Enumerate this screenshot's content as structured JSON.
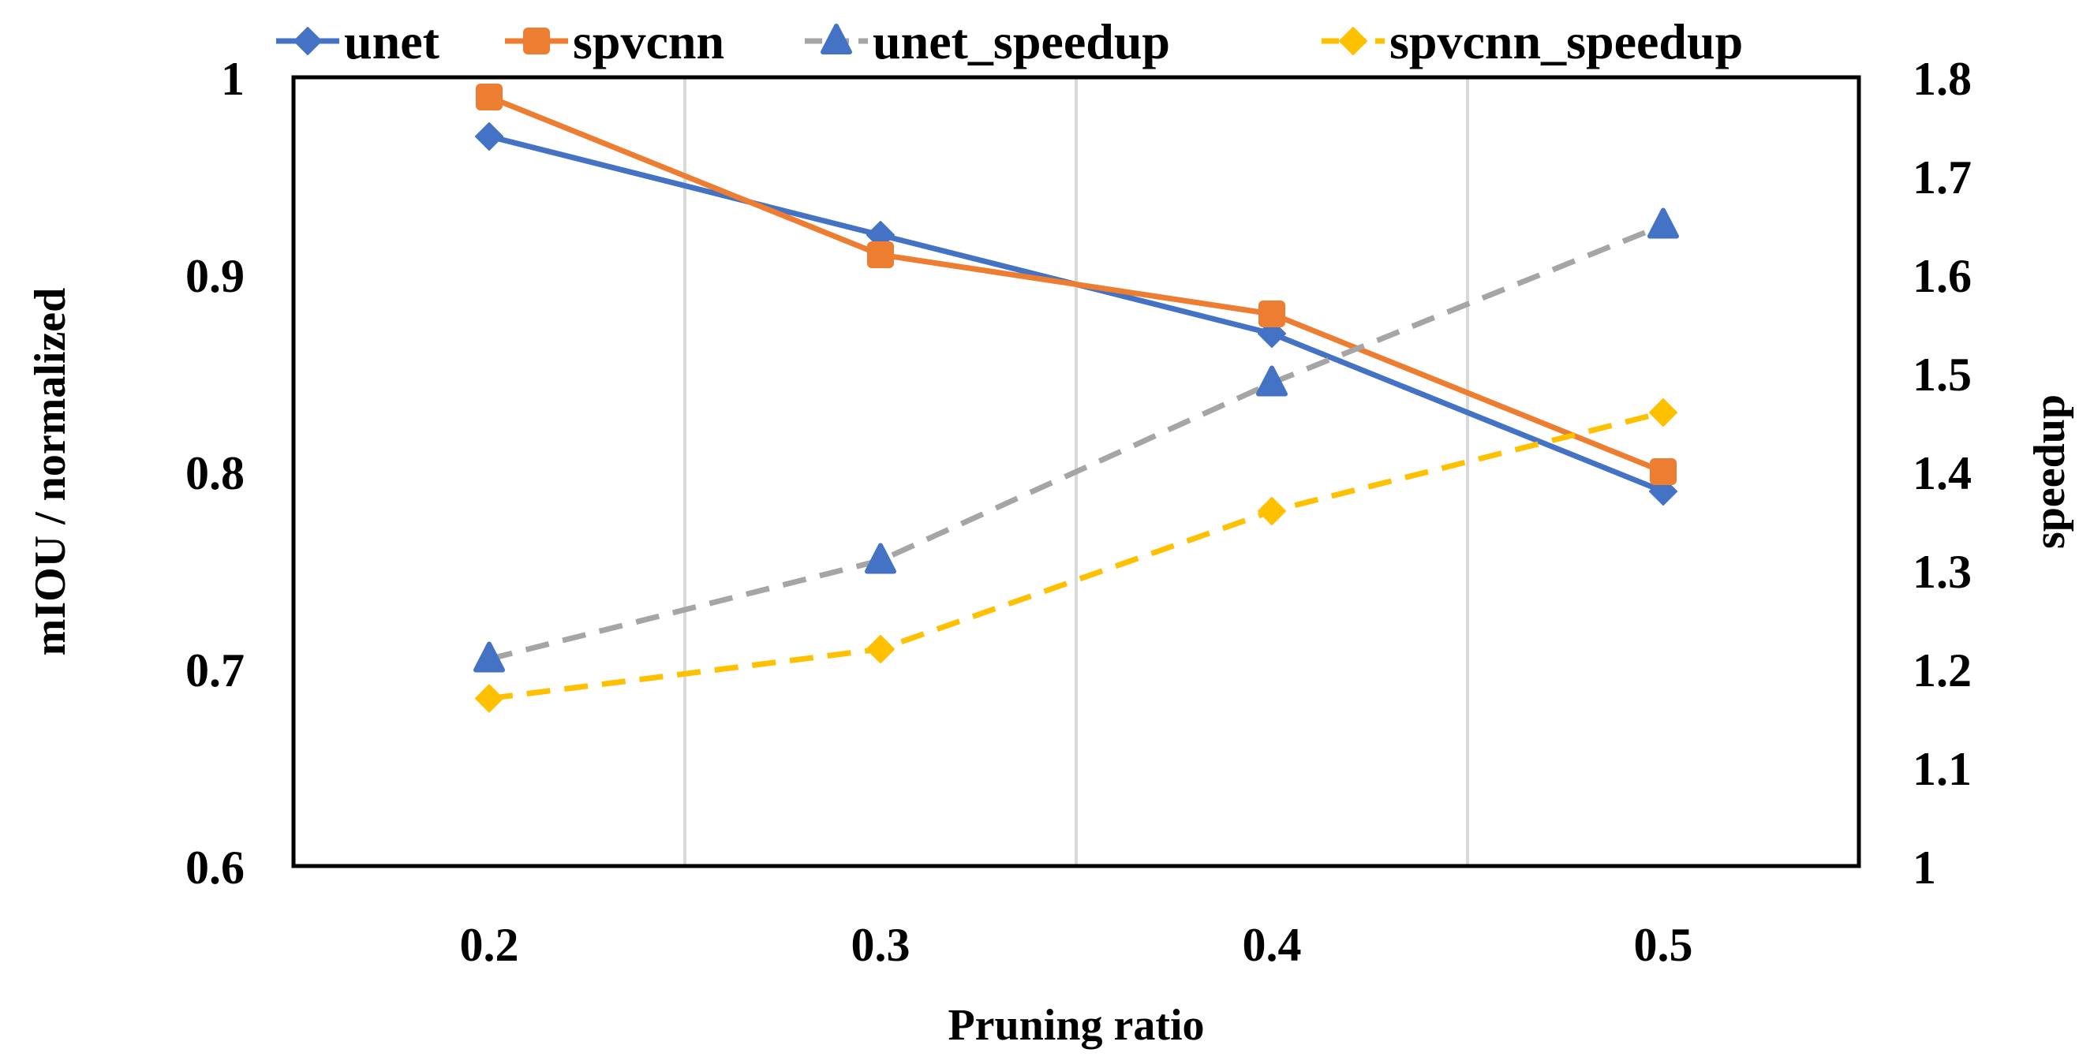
{
  "chart_data": {
    "type": "line",
    "categories": [
      "0.2",
      "0.3",
      "0.4",
      "0.5"
    ],
    "x": [
      0.2,
      0.3,
      0.4,
      0.5
    ],
    "xlabel": "Pruning ratio",
    "ylabel": "mIOU / normalized",
    "y2label": "speedup",
    "xlim": [
      0.15,
      0.55
    ],
    "ylim": [
      0.6,
      1.0
    ],
    "y2lim": [
      1.0,
      1.8
    ],
    "yticks": [
      "0.6",
      "0.7",
      "0.8",
      "0.9",
      "1"
    ],
    "y2ticks": [
      "1",
      "1.1",
      "1.2",
      "1.3",
      "1.4",
      "1.5",
      "1.6",
      "1.7",
      "1.8"
    ],
    "legend_position": "top",
    "series": [
      {
        "name": "unet",
        "axis": "left",
        "values": [
          0.97,
          0.92,
          0.87,
          0.79
        ],
        "color": "#4472C4",
        "marker": "diamond",
        "dash": false
      },
      {
        "name": "spvcnn",
        "axis": "left",
        "values": [
          0.99,
          0.91,
          0.88,
          0.8
        ],
        "color": "#ED7D31",
        "marker": "square",
        "dash": false
      },
      {
        "name": "unet_speedup",
        "axis": "right",
        "values": [
          1.21,
          1.31,
          1.49,
          1.65
        ],
        "color": "#A5A5A5",
        "marker_color": "#4472C4",
        "marker": "triangle",
        "dash": true
      },
      {
        "name": "spvcnn_speedup",
        "axis": "right",
        "values": [
          1.17,
          1.22,
          1.36,
          1.46
        ],
        "color": "#FFC000",
        "marker": "diamond",
        "dash": true
      }
    ]
  }
}
